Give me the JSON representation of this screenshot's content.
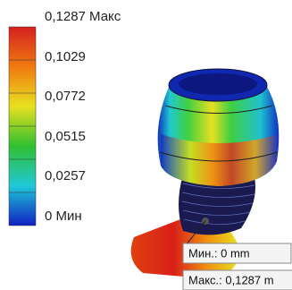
{
  "legend": {
    "labels": [
      "0,1287 Макс",
      "0,1029",
      "0,0772",
      "0,0515",
      "0,0257",
      "0 Мин"
    ]
  },
  "callouts": {
    "min": "Мин.: 0 mm",
    "max": "Макс.: 0,1287 m"
  }
}
